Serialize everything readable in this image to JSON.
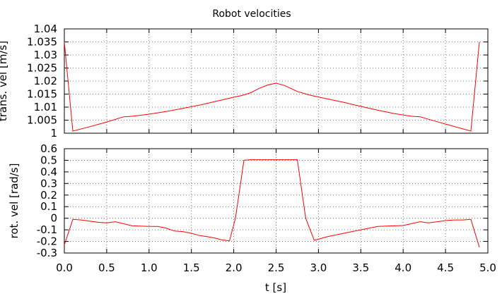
{
  "chart_data": {
    "title": "Robot velocities",
    "xlabel": "t [s]",
    "x_tick_labels": [
      "0.0",
      "0.5",
      "1.0",
      "1.5",
      "2.0",
      "2.5",
      "3.0",
      "3.5",
      "4.0",
      "4.5",
      "5.0"
    ],
    "line_color": "#ff0000",
    "grid": true,
    "panels": [
      {
        "type": "line",
        "ylabel": "trans. vel [m/s]",
        "xlim": [
          0,
          5
        ],
        "ylim": [
          1,
          1.04
        ],
        "y_ticks": [
          1,
          1.005,
          1.01,
          1.015,
          1.02,
          1.025,
          1.03,
          1.035,
          1.04
        ],
        "y_tick_labels": [
          "1",
          "1.005",
          "1.01",
          "1.015",
          "1.02",
          "1.025",
          "1.03",
          "1.035",
          "1.04"
        ],
        "x": [
          0.0,
          0.1,
          0.3,
          0.5,
          0.7,
          0.8,
          1.0,
          1.2,
          1.4,
          1.6,
          1.8,
          2.0,
          2.1,
          2.2,
          2.3,
          2.4,
          2.5,
          2.6,
          2.75,
          2.9,
          3.1,
          3.3,
          3.5,
          3.7,
          3.9,
          4.1,
          4.2,
          4.4,
          4.6,
          4.8,
          4.9
        ],
        "y": [
          1.035,
          1.0008,
          1.0025,
          1.0043,
          1.0063,
          1.0065,
          1.0073,
          1.0083,
          1.0095,
          1.0108,
          1.0123,
          1.0138,
          1.0145,
          1.0155,
          1.0172,
          1.0185,
          1.0192,
          1.0183,
          1.016,
          1.0146,
          1.0132,
          1.0118,
          1.0103,
          1.0088,
          1.0075,
          1.0065,
          1.0063,
          1.0044,
          1.0026,
          1.0008,
          1.035
        ]
      },
      {
        "type": "line",
        "ylabel": "rot. vel [rad/s]",
        "xlim": [
          0,
          5
        ],
        "ylim": [
          -0.3,
          0.6
        ],
        "y_ticks": [
          -0.3,
          -0.2,
          -0.1,
          0,
          0.1,
          0.2,
          0.3,
          0.4,
          0.5,
          0.6
        ],
        "y_tick_labels": [
          "-0.3",
          "-0.2",
          "-0.1",
          "0",
          "0.1",
          "0.2",
          "0.3",
          "0.4",
          "0.5",
          "0.6"
        ],
        "x": [
          0.0,
          0.1,
          0.2,
          0.3,
          0.4,
          0.5,
          0.6,
          0.8,
          1.0,
          1.1,
          1.2,
          1.3,
          1.4,
          1.5,
          1.6,
          1.7,
          1.8,
          1.85,
          1.95,
          2.02,
          2.12,
          2.2,
          2.5,
          2.75,
          2.85,
          2.95,
          3.1,
          3.3,
          3.5,
          3.7,
          3.9,
          4.0,
          4.2,
          4.3,
          4.4,
          4.5,
          4.6,
          4.7,
          4.8,
          4.9
        ],
        "y": [
          -0.23,
          -0.01,
          -0.015,
          -0.025,
          -0.035,
          -0.04,
          -0.03,
          -0.065,
          -0.07,
          -0.07,
          -0.085,
          -0.11,
          -0.115,
          -0.13,
          -0.15,
          -0.16,
          -0.175,
          -0.185,
          -0.195,
          0.0,
          0.5,
          0.505,
          0.505,
          0.505,
          0.0,
          -0.19,
          -0.16,
          -0.13,
          -0.1,
          -0.07,
          -0.065,
          -0.063,
          -0.03,
          -0.04,
          -0.03,
          -0.02,
          -0.015,
          -0.015,
          -0.01,
          -0.25
        ]
      }
    ]
  }
}
